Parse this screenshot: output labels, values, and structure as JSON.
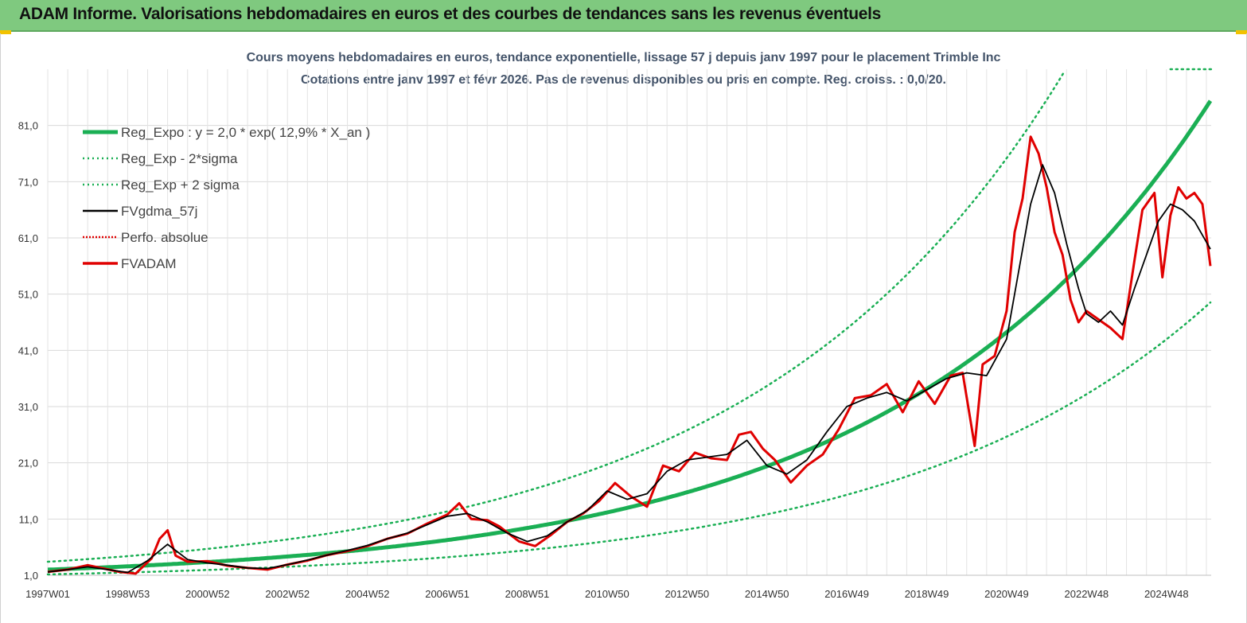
{
  "banner": {
    "title": "ADAM Informe. Valorisations hebdomadaires en euros et des courbes de tendances sans les revenus éventuels",
    "bg_color": "#7fc97f",
    "corner_color": "#f2c200"
  },
  "chart_data": {
    "type": "line",
    "title": "Cours moyens hebdomadaires en euros, tendance exponentielle, lissage 57 j depuis janv 1997  pour le placement Trimble Inc",
    "subtitle": "Cotations entre janv 1997 et févr 2026. Pas de revenus disponibles ou pris en compte. Reg. croiss. : 0,0/20.",
    "xlabel": "",
    "ylabel": "",
    "x_range": [
      1997.0,
      2026.12
    ],
    "ylim": [
      1.0,
      91.0
    ],
    "yticks": [
      1.0,
      11.0,
      21.0,
      31.0,
      41.0,
      51.0,
      61.0,
      71.0,
      81.0
    ],
    "ytick_labels": [
      "1,0",
      "11,0",
      "21,0",
      "31,0",
      "41,0",
      "51,0",
      "61,0",
      "71,0",
      "81,0"
    ],
    "xtick_positions": [
      1997.0,
      1999.0,
      2001.0,
      2003.0,
      2005.0,
      2007.0,
      2009.0,
      2011.0,
      2013.0,
      2015.0,
      2017.0,
      2019.0,
      2021.0,
      2023.0,
      2025.0
    ],
    "xtick_labels": [
      "1997W01",
      "1998W53",
      "2000W52",
      "2002W52",
      "2004W52",
      "2006W51",
      "2008W51",
      "2010W50",
      "2012W50",
      "2014W50",
      "2016W49",
      "2018W49",
      "2020W49",
      "2022W48",
      "2024W48"
    ],
    "grid": true,
    "legend_position": "top-left",
    "regression": {
      "a": 2.0,
      "rate_per_year": 0.129,
      "sigma_factor_minus": 0.58,
      "sigma_factor_plus": 1.7
    },
    "legend": [
      {
        "label": "Reg_Expo : y = 2,0 * exp( 12,9% *  X_an )",
        "color": "#1aaf54",
        "style": "solid-thick"
      },
      {
        "label": "Reg_Exp - 2*sigma",
        "color": "#1aaf54",
        "style": "dotted"
      },
      {
        "label": "Reg_Exp + 2 sigma",
        "color": "#1aaf54",
        "style": "dotted"
      },
      {
        "label": "FVgdma_57j",
        "color": "#000000",
        "style": "solid"
      },
      {
        "label": "Perfo. absolue",
        "color": "#e00000",
        "style": "dotted"
      },
      {
        "label": "FVADAM",
        "color": "#e00000",
        "style": "solid-thick"
      }
    ],
    "fvadam": {
      "x": [
        1997.0,
        1997.5,
        1998.0,
        1998.4,
        1998.8,
        1999.2,
        1999.6,
        1999.8,
        2000.0,
        2000.2,
        2000.5,
        2001.0,
        2001.5,
        2002.0,
        2002.5,
        2003.0,
        2003.5,
        2004.0,
        2004.5,
        2005.0,
        2005.5,
        2006.0,
        2006.5,
        2007.0,
        2007.3,
        2007.6,
        2008.0,
        2008.3,
        2008.8,
        2009.2,
        2009.6,
        2010.0,
        2010.4,
        2010.8,
        2011.2,
        2011.6,
        2012.0,
        2012.4,
        2012.8,
        2013.2,
        2013.6,
        2014.0,
        2014.3,
        2014.6,
        2014.9,
        2015.2,
        2015.6,
        2016.0,
        2016.4,
        2016.8,
        2017.2,
        2017.6,
        2018.0,
        2018.4,
        2018.8,
        2019.2,
        2019.6,
        2019.9,
        2020.2,
        2020.4,
        2020.7,
        2021.0,
        2021.2,
        2021.4,
        2021.6,
        2021.8,
        2022.0,
        2022.2,
        2022.4,
        2022.6,
        2022.8,
        2023.0,
        2023.3,
        2023.6,
        2023.9,
        2024.2,
        2024.4,
        2024.7,
        2024.9,
        2025.1,
        2025.3,
        2025.5,
        2025.7,
        2025.9,
        2026.1
      ],
      "y": [
        1.6,
        2.0,
        2.8,
        2.2,
        1.6,
        1.3,
        4.0,
        7.5,
        9.0,
        4.5,
        3.4,
        3.5,
        2.7,
        2.3,
        2.0,
        2.9,
        3.6,
        4.6,
        5.3,
        6.2,
        7.5,
        8.4,
        10.2,
        11.8,
        13.8,
        11.0,
        10.8,
        9.7,
        7.0,
        6.2,
        8.2,
        10.5,
        12.0,
        14.2,
        17.4,
        15.0,
        13.2,
        20.5,
        19.5,
        22.8,
        21.8,
        21.5,
        26.0,
        26.5,
        23.5,
        21.5,
        17.5,
        20.5,
        22.5,
        27.0,
        32.5,
        33.0,
        35.0,
        30.0,
        35.5,
        31.5,
        36.5,
        37.0,
        24.0,
        38.5,
        40.0,
        48.0,
        62.0,
        68.0,
        79.0,
        76.0,
        70.0,
        62.0,
        58.0,
        50.0,
        46.0,
        48.0,
        46.5,
        45.0,
        43.0,
        57.0,
        66.0,
        69.0,
        54.0,
        65.0,
        70.0,
        68.0,
        69.0,
        67.0,
        56.0
      ]
    },
    "fvgdma": {
      "x": [
        1997.0,
        1997.5,
        1998.0,
        1998.5,
        1999.0,
        1999.5,
        2000.0,
        2000.5,
        2001.0,
        2001.5,
        2002.0,
        2002.5,
        2003.0,
        2003.5,
        2004.0,
        2004.5,
        2005.0,
        2005.5,
        2006.0,
        2006.5,
        2007.0,
        2007.5,
        2008.0,
        2008.5,
        2009.0,
        2009.5,
        2010.0,
        2010.5,
        2011.0,
        2011.5,
        2012.0,
        2012.5,
        2013.0,
        2013.5,
        2014.0,
        2014.5,
        2015.0,
        2015.5,
        2016.0,
        2016.5,
        2017.0,
        2017.5,
        2018.0,
        2018.5,
        2019.0,
        2019.5,
        2020.0,
        2020.5,
        2021.0,
        2021.3,
        2021.6,
        2021.9,
        2022.2,
        2022.5,
        2022.8,
        2023.0,
        2023.3,
        2023.6,
        2023.9,
        2024.2,
        2024.5,
        2024.8,
        2025.1,
        2025.4,
        2025.7,
        2026.1
      ],
      "y": [
        1.6,
        2.0,
        2.5,
        2.0,
        1.5,
        3.6,
        6.5,
        3.8,
        3.2,
        2.8,
        2.3,
        2.2,
        2.9,
        3.7,
        4.6,
        5.4,
        6.3,
        7.5,
        8.5,
        10.0,
        11.5,
        12.0,
        10.5,
        8.5,
        7.0,
        8.0,
        10.5,
        12.5,
        16.0,
        14.5,
        15.5,
        19.5,
        21.5,
        22.0,
        22.5,
        25.0,
        20.5,
        19.0,
        21.5,
        26.5,
        31.0,
        32.5,
        33.5,
        32.0,
        34.0,
        36.0,
        37.0,
        36.5,
        43.0,
        55.0,
        67.0,
        74.0,
        69.0,
        60.0,
        52.0,
        47.5,
        46.0,
        48.0,
        45.5,
        52.0,
        58.0,
        64.0,
        67.0,
        66.0,
        64.0,
        59.0
      ]
    }
  }
}
